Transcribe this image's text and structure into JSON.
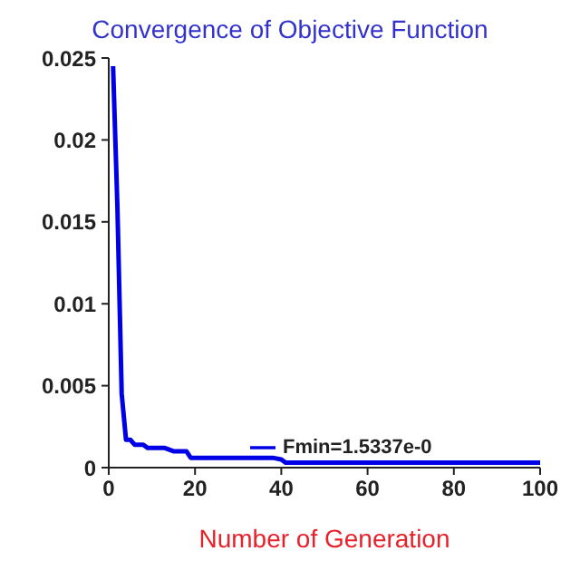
{
  "chart_data": {
    "type": "line",
    "title": "Convergence of Objective Function",
    "xlabel": "Number of Generation",
    "x": [
      1,
      2,
      3,
      4,
      5,
      6,
      8,
      9,
      13,
      15,
      18,
      19,
      38,
      40,
      41,
      100
    ],
    "series": [
      {
        "name": "Fmin=1.5337e-0",
        "color": "#0000e6",
        "values": [
          0.0245,
          0.016,
          0.0045,
          0.0017,
          0.0017,
          0.0014,
          0.0014,
          0.0012,
          0.0012,
          0.001,
          0.001,
          0.0006,
          0.0006,
          0.0005,
          0.0003,
          0.0003
        ]
      }
    ],
    "xlim": [
      0,
      100
    ],
    "xticks": [
      0,
      20,
      40,
      60,
      80,
      100
    ],
    "ylim": [
      0,
      0.025
    ],
    "yticks": [
      0,
      0.005,
      0.01,
      0.015,
      0.02,
      0.025
    ],
    "grid": false,
    "legend": "bottom right",
    "marker": "none",
    "line_style": "solid"
  }
}
